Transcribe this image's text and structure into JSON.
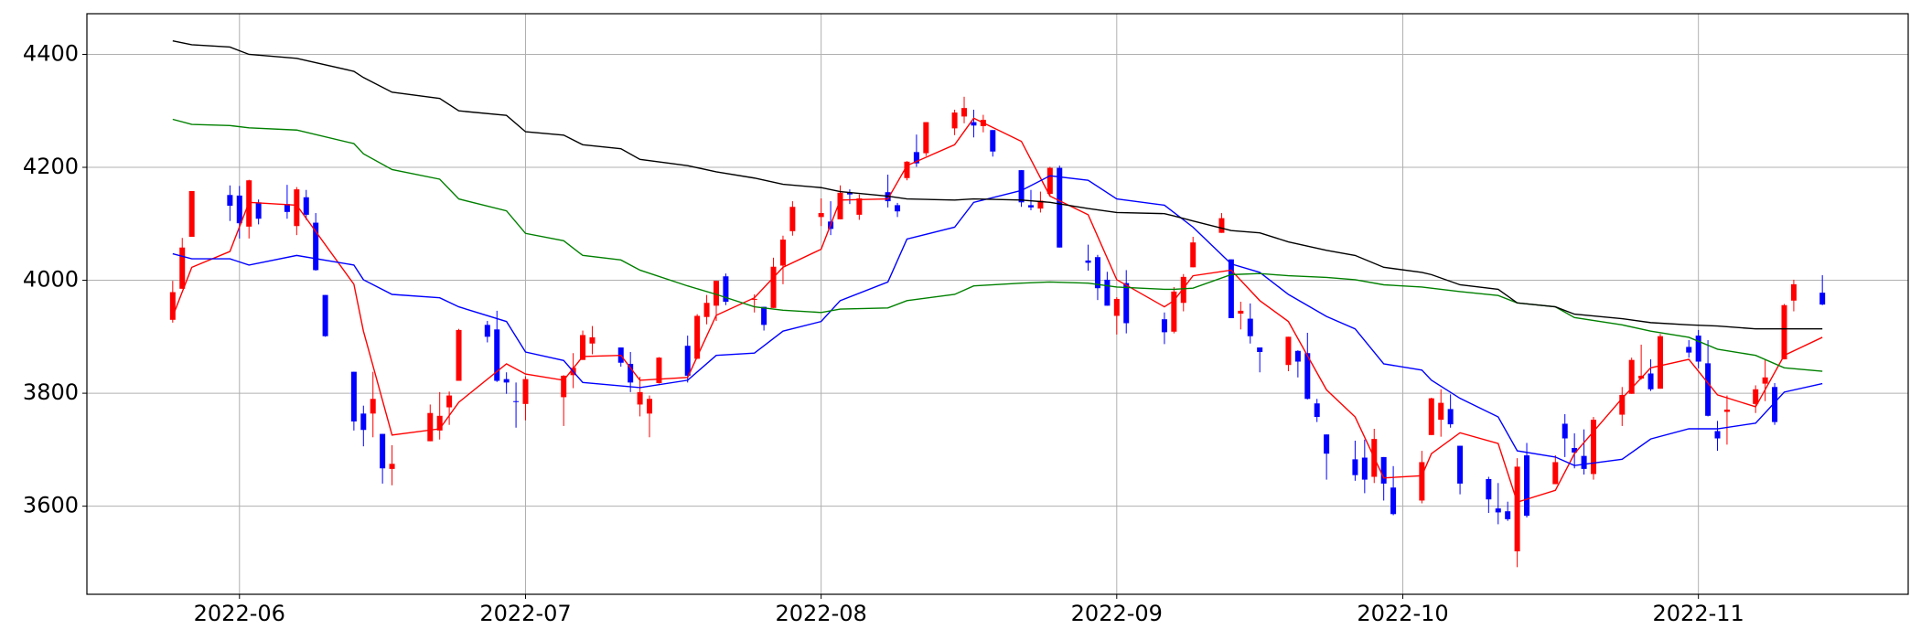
{
  "chart_data": {
    "type": "candlestick",
    "x": [
      "2022-05-25",
      "2022-05-26",
      "2022-05-27",
      "2022-05-31",
      "2022-06-01",
      "2022-06-02",
      "2022-06-03",
      "2022-06-06",
      "2022-06-07",
      "2022-06-08",
      "2022-06-09",
      "2022-06-10",
      "2022-06-13",
      "2022-06-14",
      "2022-06-15",
      "2022-06-16",
      "2022-06-17",
      "2022-06-21",
      "2022-06-22",
      "2022-06-23",
      "2022-06-24",
      "2022-06-27",
      "2022-06-28",
      "2022-06-29",
      "2022-06-30",
      "2022-07-01",
      "2022-07-05",
      "2022-07-06",
      "2022-07-07",
      "2022-07-08",
      "2022-07-11",
      "2022-07-12",
      "2022-07-13",
      "2022-07-14",
      "2022-07-15",
      "2022-07-18",
      "2022-07-19",
      "2022-07-20",
      "2022-07-21",
      "2022-07-22",
      "2022-07-25",
      "2022-07-26",
      "2022-07-27",
      "2022-07-28",
      "2022-07-29",
      "2022-08-01",
      "2022-08-02",
      "2022-08-03",
      "2022-08-04",
      "2022-08-05",
      "2022-08-08",
      "2022-08-09",
      "2022-08-10",
      "2022-08-11",
      "2022-08-12",
      "2022-08-15",
      "2022-08-16",
      "2022-08-17",
      "2022-08-18",
      "2022-08-19",
      "2022-08-22",
      "2022-08-23",
      "2022-08-24",
      "2022-08-25",
      "2022-08-26",
      "2022-08-29",
      "2022-08-30",
      "2022-08-31",
      "2022-09-01",
      "2022-09-02",
      "2022-09-06",
      "2022-09-07",
      "2022-09-08",
      "2022-09-09",
      "2022-09-12",
      "2022-09-13",
      "2022-09-14",
      "2022-09-15",
      "2022-09-16",
      "2022-09-19",
      "2022-09-20",
      "2022-09-21",
      "2022-09-22",
      "2022-09-23",
      "2022-09-26",
      "2022-09-27",
      "2022-09-28",
      "2022-09-29",
      "2022-09-30",
      "2022-10-03",
      "2022-10-04",
      "2022-10-05",
      "2022-10-06",
      "2022-10-07",
      "2022-10-10",
      "2022-10-11",
      "2022-10-12",
      "2022-10-13",
      "2022-10-14",
      "2022-10-17",
      "2022-10-18",
      "2022-10-19",
      "2022-10-20",
      "2022-10-21",
      "2022-10-24",
      "2022-10-25",
      "2022-10-26",
      "2022-10-27",
      "2022-10-28",
      "2022-10-31",
      "2022-11-01",
      "2022-11-02",
      "2022-11-03",
      "2022-11-04",
      "2022-11-07",
      "2022-11-08",
      "2022-11-09",
      "2022-11-10",
      "2022-11-11",
      "2022-11-14"
    ],
    "open": [
      3930,
      3985,
      4077,
      4151,
      4150,
      4095,
      4138,
      4135,
      4096,
      4147,
      4102,
      3974,
      3838,
      3764,
      3764,
      3728,
      3666,
      3715,
      3734,
      3775,
      3822,
      3921,
      3913,
      3825,
      3786,
      3781,
      3793,
      3832,
      3859,
      3888,
      3881,
      3852,
      3780,
      3764,
      3818,
      3884,
      3861,
      3935,
      3955,
      4007,
      3966,
      3953,
      3951,
      4026,
      4087,
      4112,
      4104,
      4108,
      4155,
      4116,
      4156,
      4133,
      4181,
      4227,
      4225,
      4269,
      4290,
      4280,
      4273,
      4266,
      4195,
      4133,
      4127,
      4153,
      4199,
      4035,
      4041,
      4001,
      3937,
      3995,
      3931,
      3909,
      3960,
      4023,
      4084,
      4037,
      3941,
      3932,
      3881,
      3850,
      3875,
      3871,
      3782,
      3727,
      3683,
      3686,
      3652,
      3687,
      3633,
      3610,
      3726,
      3753,
      3772,
      3707,
      3648,
      3596,
      3591,
      3520,
      3690,
      3639,
      3746,
      3703,
      3689,
      3657,
      3762,
      3799,
      3826,
      3835,
      3808,
      3882,
      3902,
      3853,
      3733,
      3767,
      3781,
      3817,
      3811,
      3860,
      3964,
      3978
    ],
    "high": [
      3999,
      4075,
      4158,
      4168,
      4167,
      4178,
      4143,
      4169,
      4165,
      4160,
      4119,
      3974,
      3838,
      3778,
      3838,
      3728,
      3708,
      3780,
      3802,
      3803,
      3914,
      3928,
      3946,
      3837,
      3819,
      3830,
      3832,
      3871,
      3911,
      3919,
      3881,
      3873,
      3829,
      3796,
      3864,
      3902,
      3940,
      3974,
      3999,
      4012,
      3975,
      3953,
      4040,
      4079,
      4140,
      4145,
      4140,
      4168,
      4161,
      4152,
      4187,
      4137,
      4211,
      4258,
      4280,
      4302,
      4325,
      4302,
      4293,
      4266,
      4195,
      4160,
      4157,
      4201,
      4203,
      4063,
      4045,
      4015,
      3970,
      4018,
      3943,
      3988,
      4011,
      4077,
      4119,
      4037,
      3962,
      3959,
      3881,
      3900,
      3876,
      3907,
      3790,
      3727,
      3716,
      3718,
      3737,
      3687,
      3671,
      3698,
      3792,
      3807,
      3798,
      3707,
      3652,
      3641,
      3608,
      3685,
      3712,
      3690,
      3763,
      3729,
      3736,
      3758,
      3811,
      3863,
      3886,
      3860,
      3905,
      3894,
      3912,
      3894,
      3751,
      3796,
      3814,
      3859,
      3818,
      3958,
      4001,
      4009
    ],
    "low": [
      3925,
      3985,
      4077,
      4105,
      4074,
      4074,
      4099,
      4109,
      4080,
      4107,
      4017,
      3900,
      3734,
      3706,
      3722,
      3640,
      3637,
      3715,
      3718,
      3744,
      3822,
      3890,
      3820,
      3799,
      3739,
      3752,
      3742,
      3809,
      3859,
      3869,
      3847,
      3802,
      3759,
      3722,
      3817,
      3819,
      3861,
      3922,
      3928,
      3956,
      3943,
      3911,
      3951,
      3993,
      4079,
      4096,
      4080,
      4108,
      4135,
      4107,
      4129,
      4112,
      4177,
      4201,
      4220,
      4257,
      4278,
      4253,
      4262,
      4219,
      4130,
      4124,
      4120,
      4148,
      4058,
      4017,
      3965,
      3955,
      3904,
      3906,
      3887,
      3906,
      3945,
      4023,
      4084,
      3933,
      3913,
      3888,
      3837,
      3839,
      3828,
      3789,
      3749,
      3647,
      3645,
      3623,
      3641,
      3610,
      3584,
      3605,
      3726,
      3723,
      3739,
      3621,
      3588,
      3568,
      3574,
      3492,
      3580,
      3639,
      3687,
      3667,
      3656,
      3647,
      3742,
      3799,
      3824,
      3804,
      3808,
      3863,
      3844,
      3759,
      3698,
      3709,
      3765,
      3786,
      3744,
      3860,
      3945,
      3956
    ],
    "close": [
      3979,
      4058,
      4158,
      4132,
      4101,
      4177,
      4109,
      4121,
      4161,
      4116,
      4018,
      3901,
      3750,
      3735,
      3790,
      3667,
      3675,
      3765,
      3760,
      3796,
      3912,
      3900,
      3822,
      3819,
      3785,
      3825,
      3831,
      3845,
      3903,
      3899,
      3854,
      3819,
      3802,
      3790,
      3863,
      3831,
      3937,
      3960,
      3999,
      3962,
      3967,
      3921,
      4024,
      4072,
      4130,
      4119,
      4091,
      4155,
      4152,
      4145,
      4140,
      4122,
      4210,
      4207,
      4280,
      4297,
      4305,
      4274,
      4284,
      4228,
      4138,
      4129,
      4141,
      4199,
      4058,
      4031,
      3986,
      3955,
      3967,
      3924,
      3908,
      3980,
      4006,
      4067,
      4110,
      3933,
      3946,
      3901,
      3873,
      3900,
      3856,
      3790,
      3758,
      3693,
      3655,
      3647,
      3719,
      3640,
      3586,
      3678,
      3791,
      3783,
      3745,
      3640,
      3612,
      3589,
      3577,
      3670,
      3583,
      3678,
      3720,
      3695,
      3666,
      3753,
      3797,
      3859,
      3831,
      3807,
      3901,
      3872,
      3856,
      3760,
      3720,
      3771,
      3807,
      3828,
      3749,
      3956,
      3993,
      3957
    ],
    "up_color": "#ff0000",
    "down_color": "#0000ff",
    "ma_x": [
      "2022-05-25",
      "2022-05-27",
      "2022-05-31",
      "2022-06-02",
      "2022-06-07",
      "2022-06-13",
      "2022-06-14",
      "2022-06-17",
      "2022-06-22",
      "2022-06-24",
      "2022-06-29",
      "2022-07-01",
      "2022-07-05",
      "2022-07-07",
      "2022-07-11",
      "2022-07-13",
      "2022-07-18",
      "2022-07-21",
      "2022-07-25",
      "2022-07-28",
      "2022-08-01",
      "2022-08-03",
      "2022-08-08",
      "2022-08-10",
      "2022-08-15",
      "2022-08-17",
      "2022-08-22",
      "2022-08-25",
      "2022-08-29",
      "2022-09-01",
      "2022-09-06",
      "2022-09-07",
      "2022-09-09",
      "2022-09-13",
      "2022-09-16",
      "2022-09-19",
      "2022-09-23",
      "2022-09-26",
      "2022-09-29",
      "2022-10-03",
      "2022-10-04",
      "2022-10-07",
      "2022-10-11",
      "2022-10-13",
      "2022-10-17",
      "2022-10-19",
      "2022-10-24",
      "2022-10-27",
      "2022-10-31",
      "2022-11-03",
      "2022-11-07",
      "2022-11-10",
      "2022-11-14"
    ],
    "lines": [
      {
        "color": "#ff0000",
        "values": [
          3936,
          4023,
          4051,
          4138,
          4133,
          3993,
          3910,
          3726,
          3737,
          3784,
          3852,
          3834,
          3823,
          3865,
          3867,
          3823,
          3828,
          3938,
          3969,
          4023,
          4055,
          4142,
          4144,
          4203,
          4240,
          4287,
          4246,
          4149,
          4116,
          4001,
          3953,
          3964,
          4008,
          4018,
          3964,
          3927,
          3806,
          3758,
          3650,
          3654,
          3693,
          3730,
          3711,
          3607,
          3628,
          3693,
          3791,
          3845,
          3860,
          3797,
          3776,
          3867,
          3899
        ]
      },
      {
        "color": "#0000ff",
        "values": [
          4047,
          4038,
          4038,
          4027,
          4044,
          4027,
          4001,
          3975,
          3969,
          3953,
          3927,
          3873,
          3858,
          3819,
          3813,
          3810,
          3823,
          3867,
          3871,
          3910,
          3927,
          3964,
          3997,
          4073,
          4094,
          4138,
          4159,
          4185,
          4177,
          4144,
          4133,
          4120,
          4094,
          4029,
          4014,
          3975,
          3936,
          3914,
          3852,
          3841,
          3823,
          3791,
          3758,
          3698,
          3687,
          3672,
          3683,
          3719,
          3737,
          3737,
          3747,
          3802,
          3817
        ]
      },
      {
        "color": "#008000",
        "values": [
          4285,
          4276,
          4274,
          4270,
          4266,
          4242,
          4224,
          4196,
          4179,
          4144,
          4123,
          4083,
          4070,
          4044,
          4036,
          4018,
          3990,
          3975,
          3953,
          3947,
          3943,
          3949,
          3951,
          3964,
          3975,
          3990,
          3995,
          3997,
          3995,
          3988,
          3984,
          3984,
          3986,
          4010,
          4012,
          4008,
          4005,
          4001,
          3992,
          3988,
          3986,
          3980,
          3973,
          3960,
          3953,
          3934,
          3921,
          3910,
          3899,
          3878,
          3867,
          3845,
          3839
        ]
      },
      {
        "color": "#000000",
        "values": [
          4424,
          4417,
          4413,
          4400,
          4393,
          4370,
          4359,
          4333,
          4322,
          4300,
          4292,
          4263,
          4257,
          4240,
          4233,
          4214,
          4203,
          4192,
          4181,
          4170,
          4164,
          4157,
          4149,
          4144,
          4142,
          4144,
          4142,
          4138,
          4127,
          4120,
          4118,
          4114,
          4105,
          4088,
          4084,
          4068,
          4053,
          4044,
          4023,
          4014,
          4010,
          3992,
          3984,
          3960,
          3953,
          3940,
          3932,
          3925,
          3921,
          3919,
          3914,
          3914,
          3914
        ]
      }
    ],
    "xlim": [
      "2022-05-16",
      "2022-11-23"
    ],
    "xticks": [
      "2022-06",
      "2022-07",
      "2022-08",
      "2022-09",
      "2022-10",
      "2022-11"
    ],
    "ylim": [
      3444,
      4472
    ],
    "yticks": [
      3600,
      3800,
      4000,
      4200,
      4400
    ],
    "grid": true
  }
}
